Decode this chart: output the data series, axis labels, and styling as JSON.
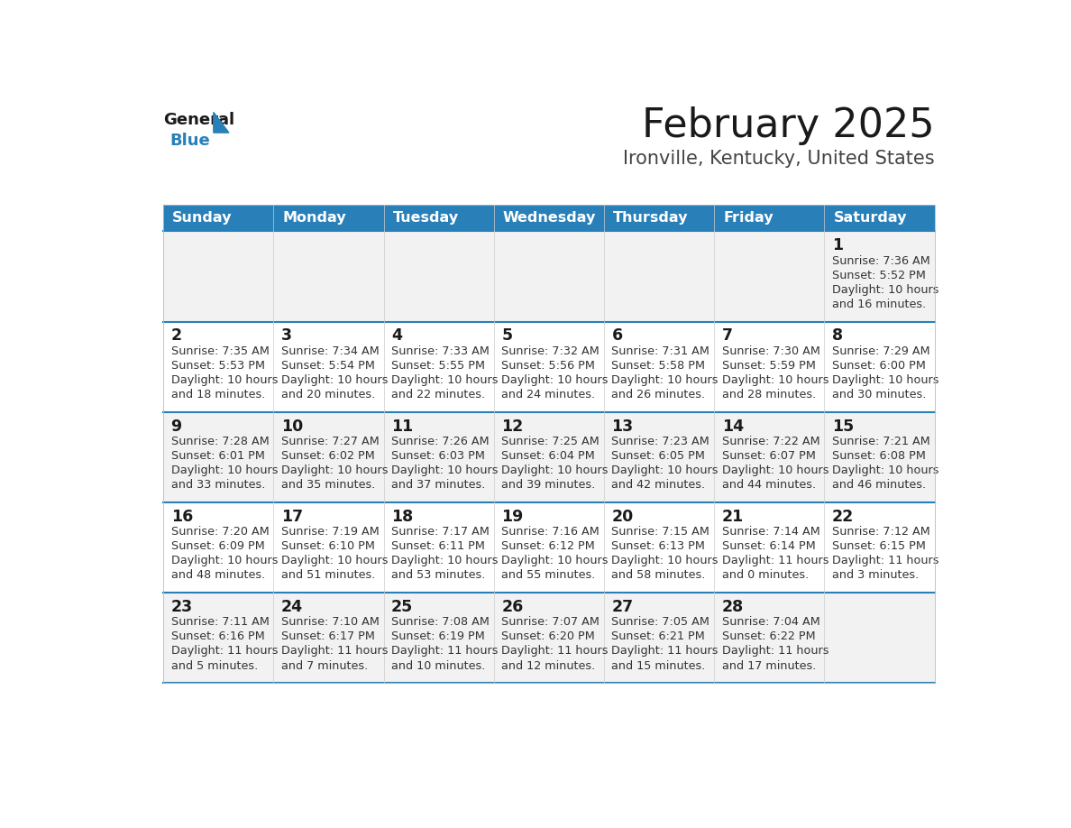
{
  "title": "February 2025",
  "subtitle": "Ironville, Kentucky, United States",
  "header_bg": "#2980B9",
  "header_text_color": "#FFFFFF",
  "days_of_week": [
    "Sunday",
    "Monday",
    "Tuesday",
    "Wednesday",
    "Thursday",
    "Friday",
    "Saturday"
  ],
  "cell_bg_odd": "#F2F2F2",
  "cell_bg_even": "#FFFFFF",
  "separator_color": "#2980B9",
  "text_color": "#333333",
  "calendar_data": [
    [
      null,
      null,
      null,
      null,
      null,
      null,
      {
        "day": 1,
        "sunrise": "7:36 AM",
        "sunset": "5:52 PM",
        "daylight_line1": "Daylight: 10 hours",
        "daylight_line2": "and 16 minutes."
      }
    ],
    [
      {
        "day": 2,
        "sunrise": "7:35 AM",
        "sunset": "5:53 PM",
        "daylight_line1": "Daylight: 10 hours",
        "daylight_line2": "and 18 minutes."
      },
      {
        "day": 3,
        "sunrise": "7:34 AM",
        "sunset": "5:54 PM",
        "daylight_line1": "Daylight: 10 hours",
        "daylight_line2": "and 20 minutes."
      },
      {
        "day": 4,
        "sunrise": "7:33 AM",
        "sunset": "5:55 PM",
        "daylight_line1": "Daylight: 10 hours",
        "daylight_line2": "and 22 minutes."
      },
      {
        "day": 5,
        "sunrise": "7:32 AM",
        "sunset": "5:56 PM",
        "daylight_line1": "Daylight: 10 hours",
        "daylight_line2": "and 24 minutes."
      },
      {
        "day": 6,
        "sunrise": "7:31 AM",
        "sunset": "5:58 PM",
        "daylight_line1": "Daylight: 10 hours",
        "daylight_line2": "and 26 minutes."
      },
      {
        "day": 7,
        "sunrise": "7:30 AM",
        "sunset": "5:59 PM",
        "daylight_line1": "Daylight: 10 hours",
        "daylight_line2": "and 28 minutes."
      },
      {
        "day": 8,
        "sunrise": "7:29 AM",
        "sunset": "6:00 PM",
        "daylight_line1": "Daylight: 10 hours",
        "daylight_line2": "and 30 minutes."
      }
    ],
    [
      {
        "day": 9,
        "sunrise": "7:28 AM",
        "sunset": "6:01 PM",
        "daylight_line1": "Daylight: 10 hours",
        "daylight_line2": "and 33 minutes."
      },
      {
        "day": 10,
        "sunrise": "7:27 AM",
        "sunset": "6:02 PM",
        "daylight_line1": "Daylight: 10 hours",
        "daylight_line2": "and 35 minutes."
      },
      {
        "day": 11,
        "sunrise": "7:26 AM",
        "sunset": "6:03 PM",
        "daylight_line1": "Daylight: 10 hours",
        "daylight_line2": "and 37 minutes."
      },
      {
        "day": 12,
        "sunrise": "7:25 AM",
        "sunset": "6:04 PM",
        "daylight_line1": "Daylight: 10 hours",
        "daylight_line2": "and 39 minutes."
      },
      {
        "day": 13,
        "sunrise": "7:23 AM",
        "sunset": "6:05 PM",
        "daylight_line1": "Daylight: 10 hours",
        "daylight_line2": "and 42 minutes."
      },
      {
        "day": 14,
        "sunrise": "7:22 AM",
        "sunset": "6:07 PM",
        "daylight_line1": "Daylight: 10 hours",
        "daylight_line2": "and 44 minutes."
      },
      {
        "day": 15,
        "sunrise": "7:21 AM",
        "sunset": "6:08 PM",
        "daylight_line1": "Daylight: 10 hours",
        "daylight_line2": "and 46 minutes."
      }
    ],
    [
      {
        "day": 16,
        "sunrise": "7:20 AM",
        "sunset": "6:09 PM",
        "daylight_line1": "Daylight: 10 hours",
        "daylight_line2": "and 48 minutes."
      },
      {
        "day": 17,
        "sunrise": "7:19 AM",
        "sunset": "6:10 PM",
        "daylight_line1": "Daylight: 10 hours",
        "daylight_line2": "and 51 minutes."
      },
      {
        "day": 18,
        "sunrise": "7:17 AM",
        "sunset": "6:11 PM",
        "daylight_line1": "Daylight: 10 hours",
        "daylight_line2": "and 53 minutes."
      },
      {
        "day": 19,
        "sunrise": "7:16 AM",
        "sunset": "6:12 PM",
        "daylight_line1": "Daylight: 10 hours",
        "daylight_line2": "and 55 minutes."
      },
      {
        "day": 20,
        "sunrise": "7:15 AM",
        "sunset": "6:13 PM",
        "daylight_line1": "Daylight: 10 hours",
        "daylight_line2": "and 58 minutes."
      },
      {
        "day": 21,
        "sunrise": "7:14 AM",
        "sunset": "6:14 PM",
        "daylight_line1": "Daylight: 11 hours",
        "daylight_line2": "and 0 minutes."
      },
      {
        "day": 22,
        "sunrise": "7:12 AM",
        "sunset": "6:15 PM",
        "daylight_line1": "Daylight: 11 hours",
        "daylight_line2": "and 3 minutes."
      }
    ],
    [
      {
        "day": 23,
        "sunrise": "7:11 AM",
        "sunset": "6:16 PM",
        "daylight_line1": "Daylight: 11 hours",
        "daylight_line2": "and 5 minutes."
      },
      {
        "day": 24,
        "sunrise": "7:10 AM",
        "sunset": "6:17 PM",
        "daylight_line1": "Daylight: 11 hours",
        "daylight_line2": "and 7 minutes."
      },
      {
        "day": 25,
        "sunrise": "7:08 AM",
        "sunset": "6:19 PM",
        "daylight_line1": "Daylight: 11 hours",
        "daylight_line2": "and 10 minutes."
      },
      {
        "day": 26,
        "sunrise": "7:07 AM",
        "sunset": "6:20 PM",
        "daylight_line1": "Daylight: 11 hours",
        "daylight_line2": "and 12 minutes."
      },
      {
        "day": 27,
        "sunrise": "7:05 AM",
        "sunset": "6:21 PM",
        "daylight_line1": "Daylight: 11 hours",
        "daylight_line2": "and 15 minutes."
      },
      {
        "day": 28,
        "sunrise": "7:04 AM",
        "sunset": "6:22 PM",
        "daylight_line1": "Daylight: 11 hours",
        "daylight_line2": "and 17 minutes."
      },
      null
    ]
  ],
  "logo_color_general": "#1a1a1a",
  "logo_color_blue": "#2980B9",
  "logo_triangle_color": "#2980B9"
}
